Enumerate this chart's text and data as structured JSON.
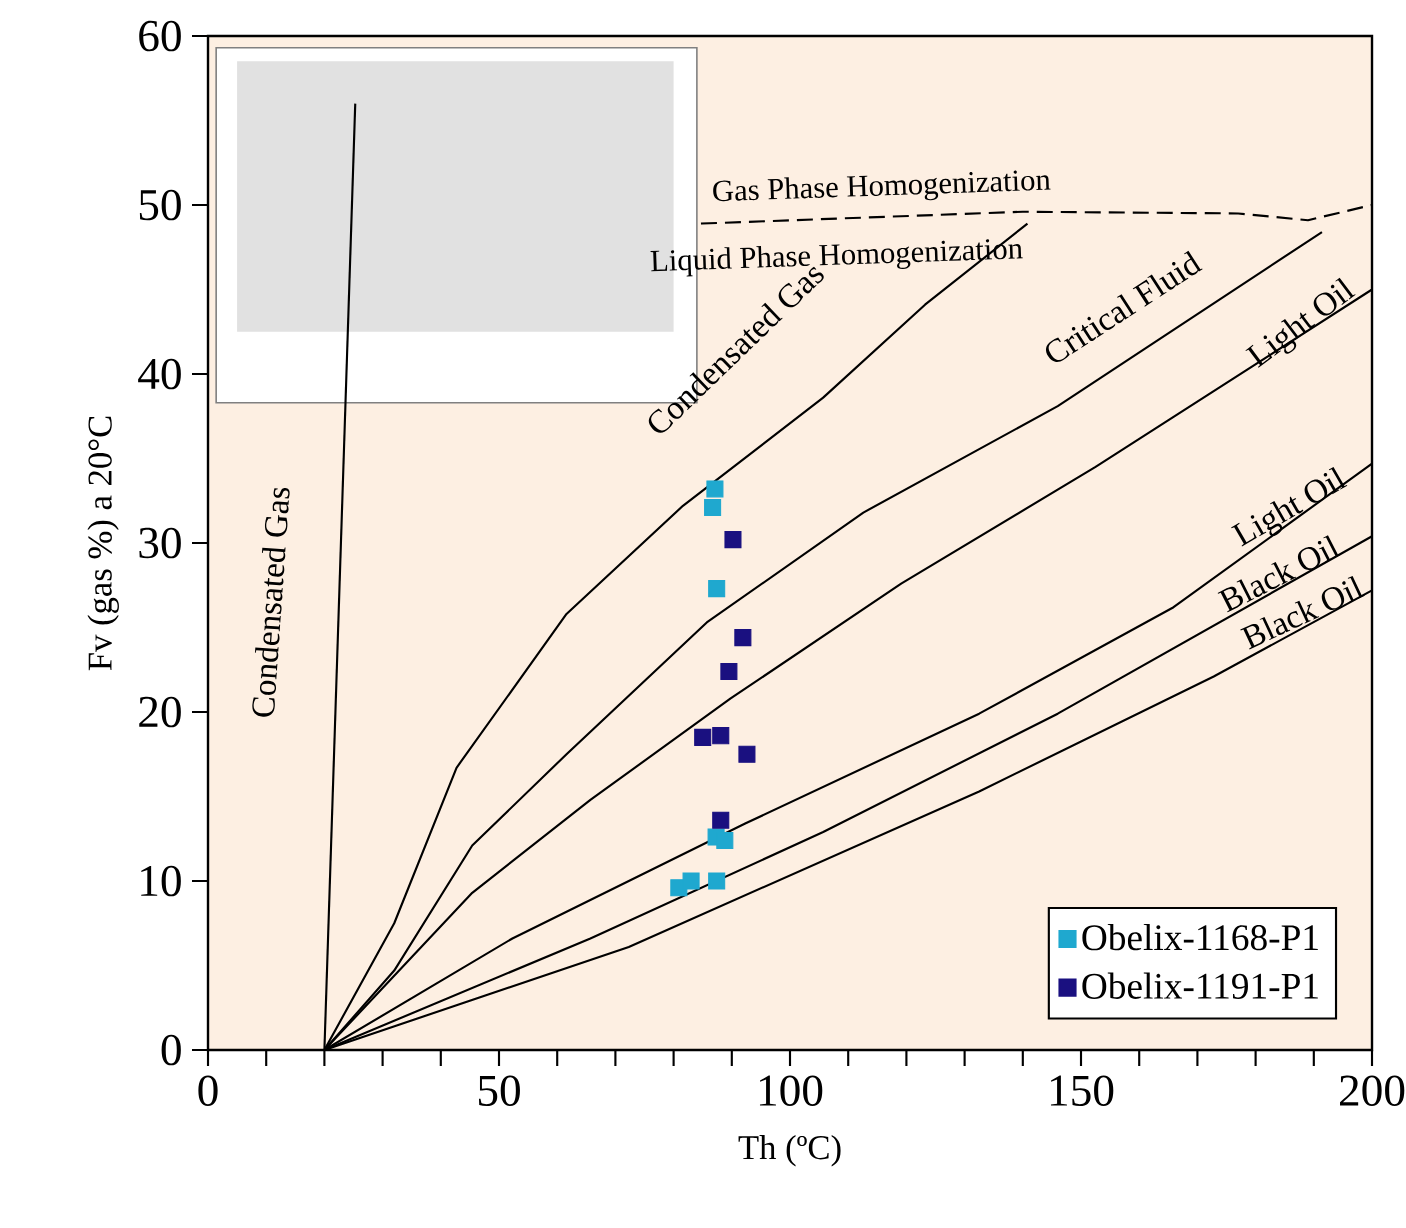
{
  "chart_data": {
    "type": "scatter",
    "xlabel": "Th (ºC)",
    "ylabel": "Fv (gas %) a 20°C",
    "xlim": [
      0,
      200
    ],
    "ylim": [
      0,
      60
    ],
    "xticks": [
      0,
      {
        "value": 10,
        "label": null
      },
      {
        "value": 20,
        "label": null
      },
      {
        "value": 30,
        "label": null
      },
      {
        "value": 40,
        "label": null
      },
      50,
      {
        "value": 60,
        "label": null
      },
      {
        "value": 70,
        "label": null
      },
      {
        "value": 80,
        "label": null
      },
      {
        "value": 90,
        "label": null
      },
      100,
      {
        "value": 110,
        "label": null
      },
      {
        "value": 120,
        "label": null
      },
      {
        "value": 130,
        "label": null
      },
      {
        "value": 140,
        "label": null
      },
      150,
      {
        "value": 160,
        "label": null
      },
      {
        "value": 170,
        "label": null
      },
      {
        "value": 180,
        "label": null
      },
      {
        "value": 190,
        "label": null
      },
      200
    ],
    "yticks": [
      0,
      10,
      20,
      30,
      40,
      50,
      60
    ],
    "grid": false,
    "legend": "bottom right",
    "marker": "square",
    "series": [
      {
        "type": "line",
        "color": "#000000",
        "marker": "none",
        "x": [
          20,
          25.3
        ],
        "values": [
          0,
          56
        ]
      },
      {
        "type": "line",
        "color": "#000000",
        "marker": "none",
        "x": [
          20,
          32.0,
          42.7,
          61.6,
          81.6,
          105.7,
          123.2,
          140.8
        ],
        "values": [
          0,
          7.5,
          16.7,
          25.8,
          32.2,
          38.6,
          44.1,
          48.9
        ]
      },
      {
        "type": "line",
        "color": "#000000",
        "marker": "none",
        "x": [
          20,
          32.0,
          45.4,
          61.6,
          85.7,
          112.6,
          146.0,
          191.4
        ],
        "values": [
          0,
          4.7,
          12.1,
          17.5,
          25.3,
          31.8,
          38.1,
          48.4
        ]
      },
      {
        "type": "line",
        "color": "#000000",
        "marker": "none",
        "x": [
          20,
          45.4,
          65.7,
          89.8,
          119.1,
          152.5,
          200
        ],
        "values": [
          0,
          9.3,
          14.8,
          20.8,
          27.6,
          34.5,
          45
        ]
      },
      {
        "type": "line",
        "color": "#000000",
        "marker": "none",
        "x": [
          20,
          52.3,
          92.3,
          132.5,
          165.9,
          200
        ],
        "values": [
          0,
          6.6,
          13.4,
          19.9,
          26.2,
          34.7
        ]
      },
      {
        "type": "line",
        "color": "#000000",
        "marker": "none",
        "x": [
          20,
          65.7,
          105.7,
          146.0,
          200
        ],
        "values": [
          0,
          6.6,
          12.9,
          19.9,
          30.4
        ]
      },
      {
        "type": "line",
        "color": "#000000",
        "marker": "none",
        "x": [
          20,
          72.3,
          132.5,
          172.8,
          200
        ],
        "values": [
          0,
          6.1,
          15.3,
          22.1,
          27.2
        ]
      },
      {
        "type": "line",
        "color": "#000000",
        "marker": "none",
        "line_style": "dashed",
        "x": [
          84.7,
          140,
          177,
          189,
          200
        ],
        "values": [
          48.9,
          49.6,
          49.5,
          49.1,
          50
        ]
      },
      {
        "name": "Obelix-1168-P1",
        "color": "#1fa8cf",
        "x": [
          87.1,
          86.7,
          87.4,
          87.3,
          88.8,
          80.9,
          83.0,
          87.4
        ],
        "values": [
          33.2,
          32.1,
          27.3,
          12.6,
          12.4,
          9.6,
          10.0,
          10.0
        ]
      },
      {
        "name": "Obelix-1191-P1",
        "color": "#1a1080",
        "x": [
          90.2,
          91.9,
          89.5,
          85.0,
          88.1,
          92.6,
          88.1
        ],
        "values": [
          30.2,
          24.4,
          22.4,
          18.5,
          18.6,
          17.5,
          13.6
        ]
      }
    ],
    "annotations": [
      "Condensated Gas",
      "Condensated Gas",
      "Critical Fluid",
      "Light Oil",
      "Light Oil",
      "Black Oil",
      "Black Oil",
      "Gas Phase Homogenization",
      "Liquid Phase Homogenization"
    ]
  }
}
